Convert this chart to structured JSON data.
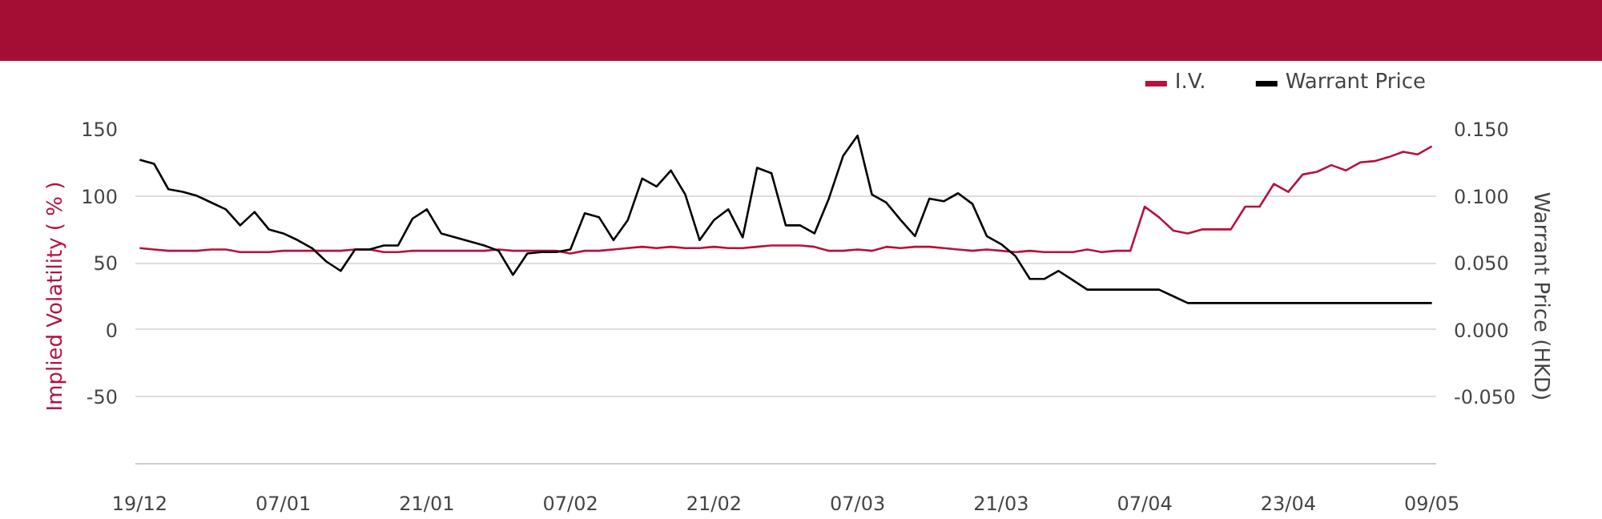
{
  "chart_data": {
    "type": "line",
    "ylabel": "Implied Volatility ( % )",
    "y2label": "Warrant Price (HKD)",
    "categories": [
      "19/12",
      null,
      null,
      null,
      null,
      null,
      null,
      null,
      null,
      null,
      "07/01",
      null,
      null,
      null,
      null,
      null,
      null,
      null,
      null,
      null,
      "21/01",
      null,
      null,
      null,
      null,
      null,
      null,
      null,
      null,
      null,
      "07/02",
      null,
      null,
      null,
      null,
      null,
      null,
      null,
      null,
      null,
      "21/02",
      null,
      null,
      null,
      null,
      null,
      null,
      null,
      null,
      null,
      "07/03",
      null,
      null,
      null,
      null,
      null,
      null,
      null,
      null,
      null,
      "21/03",
      null,
      null,
      null,
      null,
      null,
      null,
      null,
      null,
      null,
      "07/04",
      null,
      null,
      null,
      null,
      null,
      null,
      null,
      null,
      null,
      "23/04",
      null,
      null,
      null,
      null,
      null,
      null,
      null,
      null,
      null,
      "09/05"
    ],
    "series": [
      {
        "name": "I.V.",
        "color": "#b5123f",
        "values": [
          61,
          60,
          59,
          59,
          59,
          60,
          60,
          58,
          58,
          58,
          59,
          59,
          59,
          59,
          59,
          60,
          60,
          58,
          58,
          59,
          59,
          59,
          59,
          59,
          59,
          60,
          59,
          59,
          59,
          59,
          57,
          59,
          59,
          60,
          61,
          62,
          61,
          62,
          61,
          61,
          62,
          61,
          61,
          62,
          63,
          63,
          63,
          62,
          59,
          59,
          60,
          59,
          62,
          61,
          62,
          62,
          61,
          60,
          59,
          60,
          59,
          58,
          59,
          58,
          58,
          58,
          60,
          58,
          59,
          59,
          92,
          84,
          74,
          72,
          75,
          75,
          75,
          92,
          92,
          109,
          103,
          116,
          118,
          123,
          119,
          125,
          126,
          129,
          133,
          131,
          137
        ]
      },
      {
        "name": "Warrant Price",
        "color": "#000000",
        "axis": "y2",
        "values": [
          0.127,
          0.124,
          0.105,
          0.103,
          0.1,
          0.095,
          0.09,
          0.078,
          0.088,
          0.075,
          0.072,
          0.067,
          0.061,
          0.051,
          0.044,
          0.06,
          0.06,
          0.063,
          0.063,
          0.083,
          0.09,
          0.072,
          0.069,
          0.066,
          0.063,
          0.059,
          0.041,
          0.057,
          0.058,
          0.058,
          0.06,
          0.087,
          0.084,
          0.067,
          0.082,
          0.113,
          0.107,
          0.119,
          0.101,
          0.067,
          0.082,
          0.09,
          0.069,
          0.121,
          0.117,
          0.078,
          0.078,
          0.072,
          0.098,
          0.13,
          0.145,
          0.101,
          0.095,
          0.082,
          0.07,
          0.098,
          0.096,
          0.102,
          0.094,
          0.07,
          0.064,
          0.055,
          0.038,
          0.038,
          0.044,
          0.037,
          0.03,
          0.03,
          0.03,
          0.03,
          0.03,
          0.03,
          0.025,
          0.02,
          0.02,
          0.02,
          0.02,
          0.02,
          0.02,
          0.02,
          0.02,
          0.02,
          0.02,
          0.02,
          0.02,
          0.02,
          0.02,
          0.02,
          0.02,
          0.02,
          0.02
        ]
      }
    ],
    "ylim": [
      -100,
      150
    ],
    "yticks": [
      -50,
      0,
      50,
      100,
      150
    ],
    "y2lim": [
      -0.1,
      0.15
    ],
    "y2ticks": [
      {
        "value": -0.05,
        "label": "-0.050"
      },
      {
        "value": 0,
        "label": "0.000"
      },
      {
        "value": 0.05,
        "label": "0.050"
      },
      {
        "value": 0.1,
        "label": "0.100"
      },
      {
        "value": 0.15,
        "label": "0.150"
      }
    ],
    "grid": "y",
    "legend": "top right",
    "marker": "none",
    "line_style": "solid"
  }
}
